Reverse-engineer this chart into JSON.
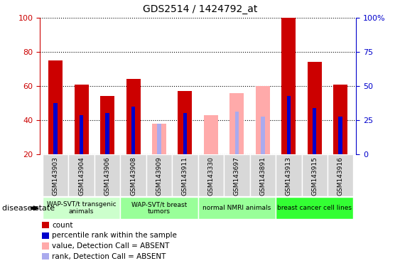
{
  "title": "GDS2514 / 1424792_at",
  "samples": [
    "GSM143903",
    "GSM143904",
    "GSM143906",
    "GSM143908",
    "GSM143909",
    "GSM143911",
    "GSM143330",
    "GSM143697",
    "GSM143891",
    "GSM143913",
    "GSM143915",
    "GSM143916"
  ],
  "count": [
    75,
    61,
    54,
    64,
    0,
    57,
    0,
    0,
    0,
    100,
    74,
    61
  ],
  "rank": [
    50,
    43,
    44,
    48,
    0,
    44,
    0,
    0,
    0,
    54,
    47,
    42
  ],
  "value_absent": [
    0,
    0,
    0,
    0,
    38,
    0,
    43,
    56,
    60,
    0,
    0,
    0
  ],
  "rank_absent": [
    0,
    0,
    0,
    0,
    38,
    0,
    0,
    45,
    42,
    0,
    0,
    0
  ],
  "group_boundaries": [
    {
      "label": "WAP-SVT/t transgenic\nanimals",
      "start": 0,
      "end": 3,
      "color": "#ccffcc"
    },
    {
      "label": "WAP-SVT/t breast\ntumors",
      "start": 3,
      "end": 6,
      "color": "#99ff99"
    },
    {
      "label": "normal NMRI animals",
      "start": 6,
      "end": 9,
      "color": "#99ff99"
    },
    {
      "label": "breast cancer cell lines",
      "start": 9,
      "end": 12,
      "color": "#33ff33"
    }
  ],
  "bar_width": 0.55,
  "rank_bar_width": 0.15,
  "ylim": [
    20,
    100
  ],
  "count_color": "#cc0000",
  "rank_color": "#0000cc",
  "value_absent_color": "#ffaaaa",
  "rank_absent_color": "#aaaaee",
  "legend_items": [
    {
      "label": "count",
      "color": "#cc0000"
    },
    {
      "label": "percentile rank within the sample",
      "color": "#0000cc"
    },
    {
      "label": "value, Detection Call = ABSENT",
      "color": "#ffaaaa"
    },
    {
      "label": "rank, Detection Call = ABSENT",
      "color": "#aaaaee"
    }
  ],
  "disease_state_label": "disease state",
  "bg_color": "#ffffff",
  "plot_bg_color": "#ffffff",
  "label_bg_color": "#d8d8d8",
  "yticks_left": [
    20,
    40,
    60,
    80,
    100
  ],
  "yticks_right_labels": [
    "0",
    "25",
    "50",
    "75",
    "100%"
  ],
  "yticks_right_pos": [
    20,
    40,
    60,
    80,
    100
  ]
}
